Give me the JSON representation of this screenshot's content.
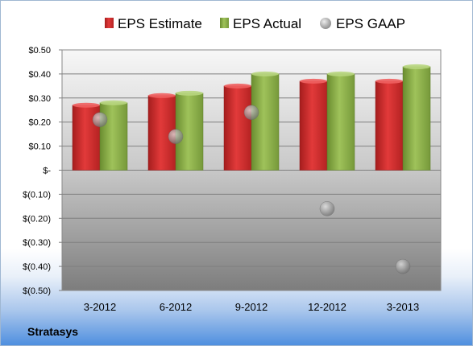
{
  "chart_data": {
    "type": "bar",
    "categories": [
      "3-2012",
      "6-2012",
      "9-2012",
      "12-2012",
      "3-2013"
    ],
    "series": [
      {
        "name": "EPS Estimate",
        "values": [
          0.27,
          0.31,
          0.35,
          0.37,
          0.37
        ],
        "color": "#d63131"
      },
      {
        "name": "EPS Actual",
        "values": [
          0.28,
          0.32,
          0.4,
          0.4,
          0.43
        ],
        "color": "#8cb04a"
      },
      {
        "name": "EPS GAAP",
        "values": [
          0.21,
          0.14,
          0.24,
          -0.16,
          -0.4
        ],
        "color": "#9a9a9a",
        "marker": "circle"
      }
    ],
    "yticks": [
      0.5,
      0.4,
      0.3,
      0.2,
      0.1,
      0,
      -0.1,
      -0.2,
      -0.3,
      -0.4,
      -0.5
    ],
    "ytick_labels": [
      "$0.50",
      "$0.40",
      "$0.30",
      "$0.20",
      "$0.10",
      "$-",
      "$(0.10)",
      "$(0.20)",
      "$(0.30)",
      "$(0.40)",
      "$(0.50)"
    ],
    "ylim": [
      -0.5,
      0.5
    ],
    "grid": true,
    "legend_position": "top"
  },
  "footer": {
    "company": "Stratasys"
  }
}
